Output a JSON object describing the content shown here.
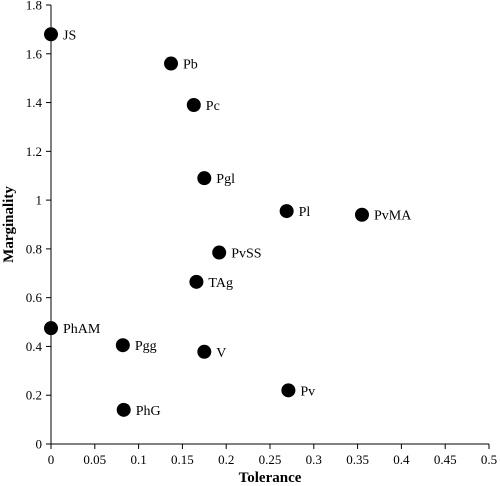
{
  "chart_data": {
    "type": "scatter",
    "title": "",
    "xlabel": "Tolerance",
    "ylabel": "Marginality",
    "xlim": [
      0,
      0.5
    ],
    "ylim": [
      0,
      1.8
    ],
    "grid": false,
    "legend": "none",
    "x_ticks": [
      "0",
      "0.05",
      "0.1",
      "0.15",
      "0.2",
      "0.25",
      "0.3",
      "0.35",
      "0.4",
      "0.45",
      "0.5"
    ],
    "y_ticks": [
      "0",
      "0.2",
      "0.4",
      "0.6",
      "0.8",
      "1",
      "1.2",
      "1.4",
      "1.6",
      "1.8"
    ],
    "marker_color": "#000000",
    "points": [
      {
        "label": "JS",
        "x": 0.0,
        "y": 1.68
      },
      {
        "label": "Pb",
        "x": 0.137,
        "y": 1.56
      },
      {
        "label": "Pc",
        "x": 0.163,
        "y": 1.39
      },
      {
        "label": "Pgl",
        "x": 0.175,
        "y": 1.09
      },
      {
        "label": "Pl",
        "x": 0.269,
        "y": 0.955
      },
      {
        "label": "PvMA",
        "x": 0.355,
        "y": 0.94
      },
      {
        "label": "PvSS",
        "x": 0.192,
        "y": 0.785
      },
      {
        "label": "TAg",
        "x": 0.166,
        "y": 0.665
      },
      {
        "label": "PhAM",
        "x": 0.0,
        "y": 0.475
      },
      {
        "label": "Pgg",
        "x": 0.082,
        "y": 0.405
      },
      {
        "label": "V",
        "x": 0.175,
        "y": 0.378
      },
      {
        "label": "Pv",
        "x": 0.271,
        "y": 0.22
      },
      {
        "label": "PhG",
        "x": 0.083,
        "y": 0.14
      }
    ]
  }
}
